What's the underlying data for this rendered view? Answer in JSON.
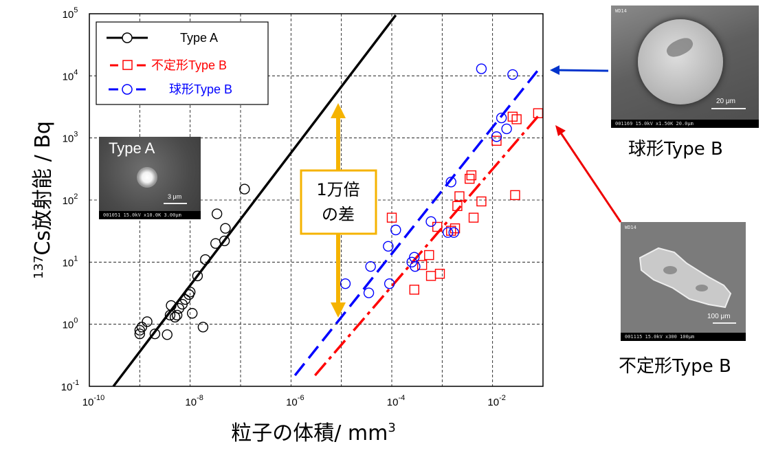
{
  "chart_data": {
    "type": "scatter",
    "xscale": "log",
    "yscale": "log",
    "xlim": [
      1e-10,
      0.1
    ],
    "ylim": [
      0.1,
      100000
    ],
    "grid": true,
    "legend_position": "top-left",
    "x_ticks": [
      {
        "base": "10",
        "exp": "-10",
        "value": 1e-10
      },
      {
        "base": "10",
        "exp": "-8",
        "value": 1e-08
      },
      {
        "base": "10",
        "exp": "-6",
        "value": 1e-06
      },
      {
        "base": "10",
        "exp": "-4",
        "value": 0.0001
      },
      {
        "base": "10",
        "exp": "-2",
        "value": 0.01
      }
    ],
    "y_ticks": [
      {
        "base": "10",
        "exp": "-1",
        "value": 0.1
      },
      {
        "base": "10",
        "exp": "0",
        "value": 1
      },
      {
        "base": "10",
        "exp": "1",
        "value": 10
      },
      {
        "base": "10",
        "exp": "2",
        "value": 100
      },
      {
        "base": "10",
        "exp": "3",
        "value": 1000
      },
      {
        "base": "10",
        "exp": "4",
        "value": 10000
      },
      {
        "base": "10",
        "exp": "5",
        "value": 100000
      }
    ],
    "xlabel": {
      "main": "粒子の体積/ mm",
      "sup": "3"
    },
    "ylabel": {
      "sup": "137",
      "main": "Cs放射能 / Bq"
    },
    "series": [
      {
        "name": "Type A",
        "color": "#000000",
        "marker": "circle",
        "line": "solid",
        "points": [
          [
            1e-09,
            0.7
          ],
          [
            1e-09,
            0.8
          ],
          [
            1.1e-09,
            0.9
          ],
          [
            1.4e-09,
            1.1
          ],
          [
            2e-09,
            0.7
          ],
          [
            3.5e-09,
            0.68
          ],
          [
            4e-09,
            1.4
          ],
          [
            4.2e-09,
            2.0
          ],
          [
            5e-09,
            1.3
          ],
          [
            5.5e-09,
            1.4
          ],
          [
            6e-09,
            1.8
          ],
          [
            7e-09,
            2.1
          ],
          [
            8e-09,
            2.5
          ],
          [
            9.5e-09,
            3.0
          ],
          [
            1e-08,
            3.3
          ],
          [
            1.1e-08,
            1.5
          ],
          [
            1.4e-08,
            6.0
          ],
          [
            1.8e-08,
            0.9
          ],
          [
            2e-08,
            11.0
          ],
          [
            3.2e-08,
            20.0
          ],
          [
            3.4e-08,
            60.0
          ],
          [
            4.8e-08,
            22.0
          ],
          [
            5e-08,
            35.0
          ],
          [
            1.2e-07,
            150.0
          ]
        ],
        "fit": [
          [
            3e-10,
            0.1
          ],
          [
            0.00012,
            95000
          ]
        ]
      },
      {
        "name": "不定形Type B",
        "color": "#ff0000",
        "marker": "square",
        "line": "dash-dot",
        "points": [
          [
            0.0001,
            52.0
          ],
          [
            0.00028,
            3.6
          ],
          [
            0.0004,
            9.0
          ],
          [
            0.00055,
            13.0
          ],
          [
            0.0006,
            6.0
          ],
          [
            0.0008,
            37.0
          ],
          [
            0.0009,
            6.5
          ],
          [
            0.0015,
            32.0
          ],
          [
            0.0018,
            35.0
          ],
          [
            0.002,
            80.0
          ],
          [
            0.0022,
            115.0
          ],
          [
            0.0035,
            220.0
          ],
          [
            0.0038,
            250.0
          ],
          [
            0.0042,
            52.0
          ],
          [
            0.006,
            95.0
          ],
          [
            0.012,
            900.0
          ],
          [
            0.025,
            2200.0
          ],
          [
            0.03,
            2000.0
          ],
          [
            0.028,
            120.0
          ],
          [
            0.08,
            2500.0
          ]
        ],
        "fit": [
          [
            3e-06,
            0.15
          ],
          [
            0.09,
            2500
          ]
        ]
      },
      {
        "name": "球形Type B",
        "color": "#0000ff",
        "marker": "circle",
        "line": "dashed",
        "points": [
          [
            1.2e-05,
            4.5
          ],
          [
            3.5e-05,
            3.2
          ],
          [
            3.8e-05,
            8.5
          ],
          [
            8.5e-05,
            18.0
          ],
          [
            9e-05,
            4.5
          ],
          [
            0.00012,
            33.0
          ],
          [
            0.00025,
            10.0
          ],
          [
            0.00028,
            12.0
          ],
          [
            0.00029,
            8.5
          ],
          [
            0.0006,
            45.0
          ],
          [
            0.0013,
            30.0
          ],
          [
            0.0015,
            195.0
          ],
          [
            0.0017,
            30.0
          ],
          [
            0.006,
            13000.0
          ],
          [
            0.012,
            1050.0
          ],
          [
            0.015,
            2100.0
          ],
          [
            0.019,
            1400.0
          ],
          [
            0.025,
            10500.0
          ]
        ],
        "fit": [
          [
            1.2e-06,
            0.15
          ],
          [
            0.09,
            14000
          ]
        ]
      }
    ],
    "annotation": {
      "line1": "1万倍",
      "line2": "の差"
    }
  },
  "images": {
    "type_a": {
      "label": "Type A",
      "scale": "3 μm",
      "info": "001051 15.0kV x10.0K 3.00μm"
    },
    "spherical": {
      "scale": "20 μm",
      "info": "001169 15.0kV x1.50K 20.0μm",
      "tag": "WD14"
    },
    "irregular": {
      "scale": "100 μm",
      "info": "001115 15.0kV x300 100μm",
      "tag": "WD14"
    }
  },
  "captions": {
    "spherical": "球形Type B",
    "irregular": "不定形Type B"
  },
  "colors": {
    "type_a": "#000000",
    "irregular": "#ff0000",
    "spherical": "#0000ff",
    "arrow_annotation": "#f5b300"
  }
}
